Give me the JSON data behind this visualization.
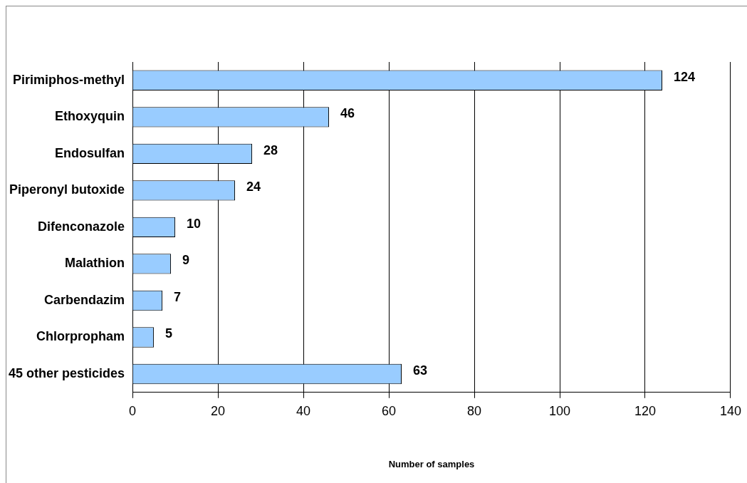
{
  "chart_data": {
    "type": "bar",
    "orientation": "horizontal",
    "xlabel": "Number of samples",
    "categories": [
      "Pirimiphos-methyl",
      "Ethoxyquin",
      "Endosulfan",
      "Piperonyl butoxide",
      "Difenconazole",
      "Malathion",
      "Carbendazim",
      "Chlorpropham",
      "45 other pesticides"
    ],
    "values": [
      124,
      46,
      28,
      24,
      10,
      9,
      7,
      5,
      63
    ],
    "color": "#99ccff",
    "xlim": [
      0,
      140
    ],
    "xticks": [
      0,
      20,
      40,
      60,
      80,
      100,
      120,
      140
    ],
    "grid": "x",
    "legend": false,
    "data_labels": true
  }
}
